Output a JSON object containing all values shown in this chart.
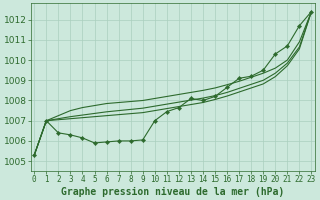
{
  "title": "Graphe pression niveau de la mer (hPa)",
  "x_labels": [
    "0",
    "1",
    "2",
    "3",
    "4",
    "5",
    "6",
    "7",
    "8",
    "9",
    "10",
    "11",
    "12",
    "13",
    "14",
    "15",
    "16",
    "17",
    "18",
    "19",
    "20",
    "21",
    "22",
    "23"
  ],
  "hours": [
    0,
    1,
    2,
    3,
    4,
    5,
    6,
    7,
    8,
    9,
    10,
    11,
    12,
    13,
    14,
    15,
    16,
    17,
    18,
    19,
    20,
    21,
    22,
    23
  ],
  "smooth1": [
    1005.3,
    1007.0,
    1007.25,
    1007.5,
    1007.65,
    1007.75,
    1007.85,
    1007.9,
    1007.95,
    1008.0,
    1008.1,
    1008.2,
    1008.3,
    1008.4,
    1008.5,
    1008.62,
    1008.78,
    1008.95,
    1009.15,
    1009.35,
    1009.6,
    1010.0,
    1010.9,
    1012.4
  ],
  "smooth2": [
    1005.3,
    1007.0,
    1007.1,
    1007.2,
    1007.28,
    1007.36,
    1007.44,
    1007.5,
    1007.56,
    1007.62,
    1007.72,
    1007.82,
    1007.92,
    1008.02,
    1008.12,
    1008.24,
    1008.4,
    1008.6,
    1008.8,
    1009.0,
    1009.35,
    1009.85,
    1010.65,
    1012.4
  ],
  "smooth3": [
    1005.3,
    1007.0,
    1007.05,
    1007.1,
    1007.15,
    1007.2,
    1007.25,
    1007.3,
    1007.35,
    1007.4,
    1007.5,
    1007.6,
    1007.7,
    1007.8,
    1007.9,
    1008.05,
    1008.22,
    1008.42,
    1008.62,
    1008.82,
    1009.18,
    1009.72,
    1010.55,
    1012.4
  ],
  "marker_line": [
    1005.3,
    1007.0,
    1006.4,
    1006.3,
    1006.15,
    1005.9,
    1005.95,
    1006.0,
    1006.0,
    1006.05,
    1007.0,
    1007.45,
    1007.65,
    1008.1,
    1008.0,
    1008.2,
    1008.65,
    1009.1,
    1009.2,
    1009.5,
    1010.3,
    1010.7,
    1011.7,
    1012.4
  ],
  "line_color": "#2d6a2d",
  "bg_color": "#cce8dc",
  "grid_color": "#aacfbe",
  "ylim": [
    1004.5,
    1012.8
  ],
  "yticks": [
    1005,
    1006,
    1007,
    1008,
    1009,
    1010,
    1011,
    1012
  ],
  "xlabel_fontsize": 5.5,
  "ylabel_fontsize": 6.5,
  "title_fontsize": 7.0,
  "lw": 0.8
}
